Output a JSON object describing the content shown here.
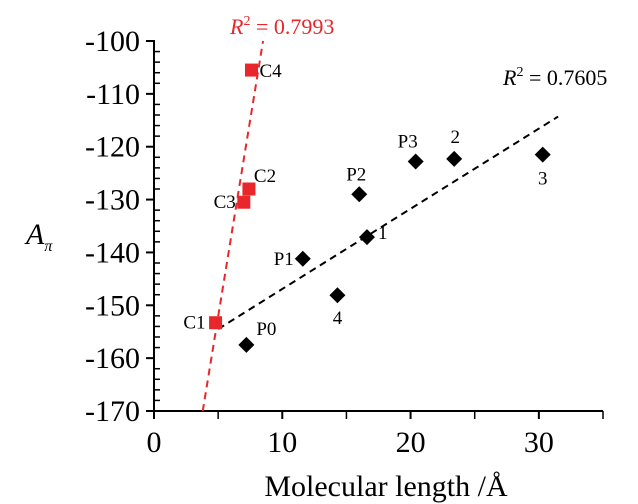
{
  "chart_data": {
    "type": "scatter",
    "title": "",
    "xlabel": "Molecular length /Å",
    "ylabel_main": "A",
    "ylabel_sub": "π",
    "xlim": [
      0,
      35
    ],
    "ylim": [
      -170,
      -100
    ],
    "xticks": [
      0,
      10,
      20,
      30
    ],
    "yticks": [
      -170,
      -160,
      -150,
      -140,
      -130,
      -120,
      -110,
      -100
    ],
    "grid": false,
    "series": [
      {
        "color": "#e8262b",
        "marker": "square",
        "points": [
          {
            "label": "C1",
            "x": 4.8,
            "y": -153.3
          },
          {
            "label": "C3",
            "x": 7.0,
            "y": -130.5
          },
          {
            "label": "C2",
            "x": 7.4,
            "y": -128.0
          },
          {
            "label": "C4",
            "x": 7.6,
            "y": -105.5
          }
        ],
        "trendline": {
          "x": [
            3.8,
            8.5
          ],
          "y": [
            -170,
            -100
          ],
          "r2_prefix": "R",
          "r2_sup": "2",
          "r2_text": " = 0.7993",
          "color": "#e8262b"
        }
      },
      {
        "color": "#000000",
        "marker": "diamond",
        "points": [
          {
            "label": "P0",
            "x": 7.2,
            "y": -157.5
          },
          {
            "label": "P1",
            "x": 11.6,
            "y": -141.2
          },
          {
            "label": "4",
            "x": 14.3,
            "y": -148.1
          },
          {
            "label": "P2",
            "x": 16.0,
            "y": -129.0
          },
          {
            "label": "1",
            "x": 16.6,
            "y": -137.1
          },
          {
            "label": "P3",
            "x": 20.4,
            "y": -122.8
          },
          {
            "label": "2",
            "x": 23.4,
            "y": -122.3
          },
          {
            "label": "3",
            "x": 30.3,
            "y": -121.5
          }
        ],
        "trendline": {
          "x": [
            5.0,
            31.5
          ],
          "y": [
            -154.5,
            -114.3
          ],
          "r2_prefix": "R",
          "r2_sup": "2",
          "r2_text": " = 0.7605",
          "color": "#000000"
        }
      }
    ]
  }
}
